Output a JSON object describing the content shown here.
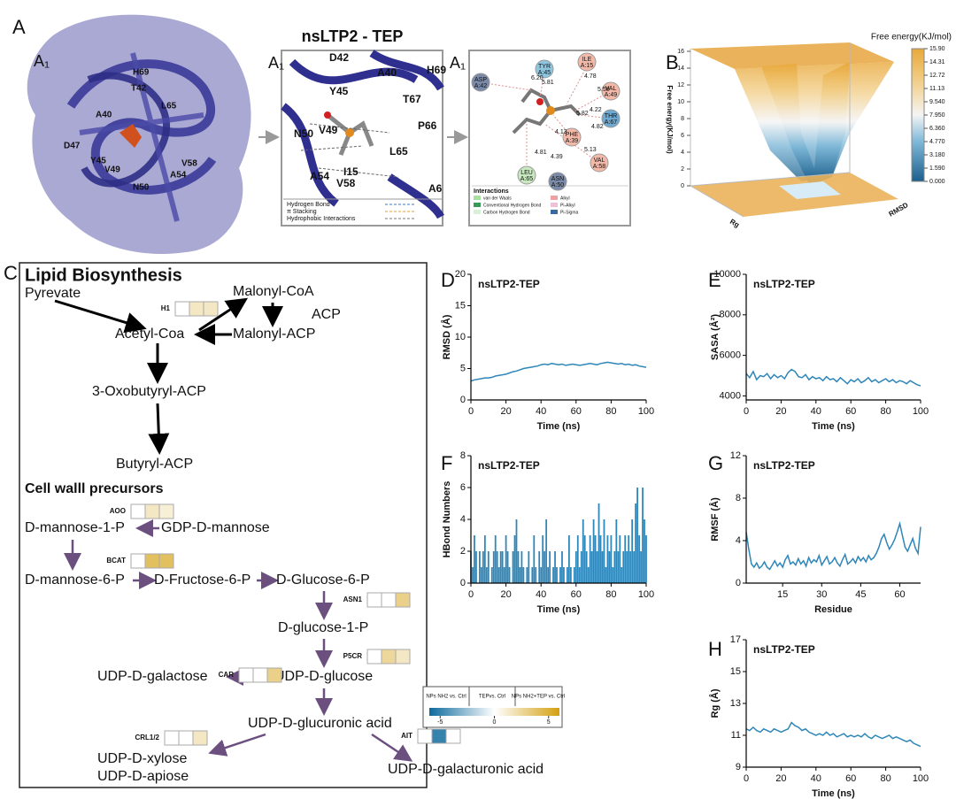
{
  "panel_a": {
    "label": "A",
    "sublabels": [
      "A₁",
      "A₁",
      "A₁"
    ],
    "title": "nsLTP2 - TEP",
    "surface_residues": [
      "H69",
      "T42",
      "A40",
      "L65",
      "D47",
      "Y45",
      "V49",
      "N50",
      "A54",
      "V58"
    ],
    "pocket_residues": [
      "D42",
      "A40",
      "H69",
      "Y45",
      "T67",
      "N50",
      "V49",
      "P66",
      "L65",
      "I15",
      "A54",
      "V58",
      "A6"
    ],
    "legend": [
      "Hydrogen Bond",
      "π Stacking",
      "Hydrophobic Interactions"
    ],
    "diagram_residues": [
      {
        "name": "ASP",
        "id": "A:42"
      },
      {
        "name": "TYR",
        "id": "A:45"
      },
      {
        "name": "ILE",
        "id": "A:15"
      },
      {
        "name": "VAL",
        "id": "A:49"
      },
      {
        "name": "THR",
        "id": "A:67"
      },
      {
        "name": "PHE",
        "id": "A:39"
      },
      {
        "name": "VAL",
        "id": "A:58"
      },
      {
        "name": "LEU",
        "id": "A:65"
      },
      {
        "name": "ASN",
        "id": "A:50"
      }
    ],
    "distances": [
      "6.20",
      "5.81",
      "4.78",
      "5.58",
      "5.82",
      "4.22",
      "4.82",
      "4.13",
      "4.39",
      "5.13",
      "4.81"
    ],
    "interactions_title": "Interactions",
    "interactions": [
      "van der Waals",
      "Conventional Hydrogen Bond",
      "Carbon Hydrogen Bond",
      "Alkyl",
      "Pi-Alkyl",
      "Pi-Sigma"
    ]
  },
  "panel_b": {
    "label": "B",
    "colorbar_title": "Free energy(KJ/mol)",
    "colorbar_ticks": [
      {
        "value": 15.9,
        "label": "15.90"
      },
      {
        "value": 14.31,
        "label": "14.31"
      },
      {
        "value": 12.72,
        "label": "12.72"
      },
      {
        "value": 11.13,
        "label": "11.13"
      },
      {
        "value": 9.54,
        "label": "9.540"
      },
      {
        "value": 7.95,
        "label": "7.950"
      },
      {
        "value": 6.36,
        "label": "6.360"
      },
      {
        "value": 4.77,
        "label": "4.770"
      },
      {
        "value": 3.18,
        "label": "3.180"
      },
      {
        "value": 1.59,
        "label": "1.590"
      },
      {
        "value": 0,
        "label": "0.000"
      }
    ],
    "zlim": [
      0,
      16
    ],
    "zticks": [
      0,
      2,
      4,
      6,
      8,
      10,
      12,
      14,
      16
    ],
    "z_label": "Free energy(KJ/mol)",
    "x_label": "RMSD",
    "y_label": "Rg"
  },
  "panel_c": {
    "label": "C",
    "title": "Lipid Biosynthesis",
    "section": "Cell walll precursors",
    "nodes": [
      "Pyrevate",
      "Malonyl-CoA",
      "ACP",
      "Acetyl-Coa",
      "Malonyl-ACP",
      "3-Oxobutyryl-ACP",
      "Butyryl-ACP",
      "D-mannose-1-P",
      "GDP-D-mannose",
      "D-mannose-6-P",
      "D-Fructose-6-P",
      "D-Glucose-6-P",
      "D-glucose-1-P",
      "UDP-D-galactose",
      "UDP-D-glucose",
      "UDP-D-glucuronic acid",
      "UDP-D-xylose",
      "UDP-D-apiose",
      "UDP-D-galacturonic acid"
    ],
    "genes": [
      {
        "name": "H1",
        "values": [
          0,
          1.5,
          1.5
        ]
      },
      {
        "name": "AOO",
        "values": [
          0,
          1.5,
          1
        ]
      },
      {
        "name": "BCAT",
        "values": [
          0,
          4,
          4
        ]
      },
      {
        "name": "ASN1",
        "values": [
          0,
          0,
          3
        ]
      },
      {
        "name": "P5CR",
        "values": [
          0,
          2.5,
          1.5
        ]
      },
      {
        "name": "CAR",
        "values": [
          0,
          0,
          3
        ]
      },
      {
        "name": "CRL1/2",
        "values": [
          0,
          0,
          1.5
        ]
      },
      {
        "name": "AIT",
        "values": [
          0,
          -5,
          0
        ]
      }
    ],
    "legend_columns": [
      "NPs NH2 vs. Ctrl",
      "TEPvs. Ctrl",
      "NPs NH2+TEP vs. Ctrl"
    ],
    "scale_lim": [
      -6,
      6
    ],
    "scale_ticks": [
      -5,
      0,
      5
    ],
    "scale_colors": [
      "#0d6a9c",
      "#ffffff",
      "#d4a010"
    ]
  },
  "chart_data": [
    {
      "type": "line",
      "panel": "D",
      "title": "nsLTP2-TEP",
      "x_label": "Time (ns)",
      "y_label": "RMSD (Å)",
      "color": "#2e86b9",
      "xlim": [
        0,
        100
      ],
      "xticks": [
        0,
        20,
        40,
        60,
        80,
        100
      ],
      "ylim": [
        0,
        20
      ],
      "yticks": [
        0,
        5,
        10,
        15,
        20
      ],
      "x": [
        0,
        2,
        4,
        6,
        8,
        10,
        12,
        14,
        16,
        18,
        20,
        22,
        24,
        26,
        28,
        30,
        32,
        34,
        36,
        38,
        40,
        42,
        44,
        46,
        48,
        50,
        52,
        54,
        56,
        58,
        60,
        62,
        64,
        66,
        68,
        70,
        72,
        74,
        76,
        78,
        80,
        82,
        84,
        86,
        88,
        90,
        92,
        94,
        96,
        98,
        100
      ],
      "values": [
        3.0,
        3.2,
        3.3,
        3.4,
        3.5,
        3.5,
        3.6,
        3.8,
        3.9,
        4.0,
        4.1,
        4.3,
        4.5,
        4.6,
        4.8,
        5.0,
        5.1,
        5.2,
        5.3,
        5.4,
        5.6,
        5.7,
        5.6,
        5.8,
        5.7,
        5.6,
        5.7,
        5.5,
        5.6,
        5.7,
        5.6,
        5.5,
        5.6,
        5.7,
        5.8,
        5.7,
        5.6,
        5.8,
        5.9,
        6.0,
        5.9,
        5.8,
        5.7,
        5.8,
        5.6,
        5.7,
        5.5,
        5.6,
        5.4,
        5.3,
        5.2
      ]
    },
    {
      "type": "line",
      "panel": "E",
      "title": "nsLTP2-TEP",
      "x_label": "Time (ns)",
      "y_label": "SASA (Å²)",
      "color": "#2e86b9",
      "xlim": [
        0,
        100
      ],
      "xticks": [
        0,
        20,
        40,
        60,
        80,
        100
      ],
      "ylim": [
        3800,
        10000
      ],
      "yticks": [
        4000,
        6000,
        8000,
        10000
      ],
      "x": [
        0,
        2,
        4,
        6,
        8,
        10,
        12,
        14,
        16,
        18,
        20,
        22,
        24,
        26,
        28,
        30,
        32,
        34,
        36,
        38,
        40,
        42,
        44,
        46,
        48,
        50,
        52,
        54,
        56,
        58,
        60,
        62,
        64,
        66,
        68,
        70,
        72,
        74,
        76,
        78,
        80,
        82,
        84,
        86,
        88,
        90,
        92,
        94,
        96,
        98,
        100
      ],
      "values": [
        5100,
        4900,
        5200,
        4800,
        5000,
        4950,
        5100,
        4850,
        5050,
        4900,
        5000,
        4850,
        5150,
        5300,
        5200,
        4950,
        4900,
        5050,
        4800,
        4950,
        4850,
        4900,
        4750,
        4950,
        4800,
        4850,
        4700,
        4900,
        4750,
        4600,
        4800,
        4700,
        4850,
        4650,
        4750,
        4900,
        4700,
        4800,
        4650,
        4750,
        4850,
        4700,
        4800,
        4650,
        4750,
        4700,
        4600,
        4750,
        4650,
        4550,
        4500
      ]
    },
    {
      "type": "bar",
      "panel": "F",
      "title": "nsLTP2-TEP",
      "x_label": "Time (ns)",
      "y_label": "HBond Numbers",
      "color": "#2e86b9",
      "xlim": [
        0,
        100
      ],
      "xticks": [
        0,
        20,
        40,
        60,
        80,
        100
      ],
      "ylim": [
        0,
        8
      ],
      "yticks": [
        0,
        2,
        4,
        6,
        8
      ],
      "x": [
        0,
        1,
        2,
        3,
        4,
        5,
        6,
        7,
        8,
        9,
        10,
        11,
        12,
        13,
        14,
        15,
        16,
        17,
        18,
        19,
        20,
        21,
        22,
        23,
        24,
        25,
        26,
        27,
        28,
        29,
        30,
        31,
        32,
        33,
        34,
        35,
        36,
        37,
        38,
        39,
        40,
        41,
        42,
        43,
        44,
        45,
        46,
        47,
        48,
        49,
        50,
        51,
        52,
        53,
        54,
        55,
        56,
        57,
        58,
        59,
        60,
        61,
        62,
        63,
        64,
        65,
        66,
        67,
        68,
        69,
        70,
        71,
        72,
        73,
        74,
        75,
        76,
        77,
        78,
        79,
        80,
        81,
        82,
        83,
        84,
        85,
        86,
        87,
        88,
        89,
        90,
        91,
        92,
        93,
        94,
        95,
        96,
        97,
        98,
        99,
        100
      ],
      "values": [
        2,
        1,
        3,
        2,
        0,
        2,
        1,
        2,
        3,
        1,
        2,
        0,
        1,
        2,
        3,
        2,
        1,
        2,
        2,
        1,
        3,
        2,
        1,
        0,
        2,
        3,
        4,
        2,
        1,
        2,
        1,
        0,
        1,
        2,
        0,
        1,
        3,
        1,
        0,
        2,
        1,
        3,
        2,
        4,
        1,
        2,
        0,
        1,
        2,
        1,
        0,
        1,
        2,
        1,
        0,
        1,
        3,
        1,
        0,
        1,
        2,
        3,
        1,
        2,
        4,
        3,
        2,
        1,
        3,
        2,
        4,
        3,
        2,
        5,
        3,
        2,
        4,
        1,
        3,
        2,
        3,
        1,
        2,
        4,
        2,
        3,
        1,
        2,
        3,
        2,
        3,
        2,
        4,
        2,
        5,
        6,
        3,
        2,
        6,
        4,
        3
      ]
    },
    {
      "type": "line",
      "panel": "G",
      "title": "nsLTP2-TEP",
      "x_label": "Residue",
      "y_label": "RMSF (Å)",
      "color": "#2e86b9",
      "xlim": [
        1,
        68
      ],
      "xticks": [
        15,
        30,
        45,
        60
      ],
      "ylim": [
        0,
        12
      ],
      "yticks": [
        0,
        4,
        8,
        12
      ],
      "x": [
        1,
        2,
        3,
        4,
        5,
        6,
        7,
        8,
        9,
        10,
        11,
        12,
        13,
        14,
        15,
        16,
        17,
        18,
        19,
        20,
        21,
        22,
        23,
        24,
        25,
        26,
        27,
        28,
        29,
        30,
        31,
        32,
        33,
        34,
        35,
        36,
        37,
        38,
        39,
        40,
        41,
        42,
        43,
        44,
        45,
        46,
        47,
        48,
        49,
        50,
        51,
        52,
        53,
        54,
        55,
        56,
        57,
        58,
        59,
        60,
        61,
        62,
        63,
        64,
        65,
        66,
        67,
        68
      ],
      "values": [
        4.8,
        3.2,
        1.8,
        1.5,
        1.9,
        1.4,
        1.6,
        2.0,
        1.5,
        1.3,
        1.7,
        2.1,
        1.6,
        1.9,
        1.5,
        2.2,
        2.6,
        1.8,
        2.0,
        1.7,
        2.3,
        1.8,
        2.1,
        1.6,
        2.4,
        1.9,
        2.2,
        2.0,
        2.6,
        1.7,
        2.1,
        2.5,
        1.8,
        2.0,
        2.4,
        1.9,
        1.6,
        2.2,
        2.7,
        1.8,
        2.0,
        2.3,
        1.9,
        2.5,
        2.1,
        2.4,
        2.0,
        2.6,
        2.2,
        2.4,
        2.8,
        3.4,
        4.2,
        4.6,
        3.8,
        3.2,
        3.6,
        4.1,
        4.8,
        5.6,
        4.5,
        3.4,
        3.0,
        3.6,
        4.2,
        3.3,
        2.8,
        5.3
      ]
    },
    {
      "type": "line",
      "panel": "H",
      "title": "nsLTP2-TEP",
      "x_label": "Time (ns)",
      "y_label": "Rg (Å)",
      "color": "#2e86b9",
      "xlim": [
        0,
        100
      ],
      "xticks": [
        0,
        20,
        40,
        60,
        80,
        100
      ],
      "ylim": [
        9,
        17
      ],
      "yticks": [
        9,
        11,
        13,
        15,
        17
      ],
      "x": [
        0,
        2,
        4,
        6,
        8,
        10,
        12,
        14,
        16,
        18,
        20,
        22,
        24,
        26,
        28,
        30,
        32,
        34,
        36,
        38,
        40,
        42,
        44,
        46,
        48,
        50,
        52,
        54,
        56,
        58,
        60,
        62,
        64,
        66,
        68,
        70,
        72,
        74,
        76,
        78,
        80,
        82,
        84,
        86,
        88,
        90,
        92,
        94,
        96,
        98,
        100
      ],
      "values": [
        11.4,
        11.3,
        11.5,
        11.3,
        11.2,
        11.4,
        11.3,
        11.2,
        11.4,
        11.3,
        11.2,
        11.3,
        11.4,
        11.8,
        11.6,
        11.5,
        11.3,
        11.4,
        11.2,
        11.1,
        11.0,
        11.1,
        11.0,
        11.2,
        11.0,
        11.1,
        10.9,
        11.0,
        11.1,
        10.9,
        11.0,
        10.9,
        11.0,
        10.9,
        11.1,
        10.9,
        10.8,
        11.0,
        10.9,
        10.8,
        10.9,
        11.0,
        10.8,
        10.9,
        10.8,
        10.7,
        10.6,
        10.7,
        10.5,
        10.4,
        10.3
      ]
    }
  ]
}
